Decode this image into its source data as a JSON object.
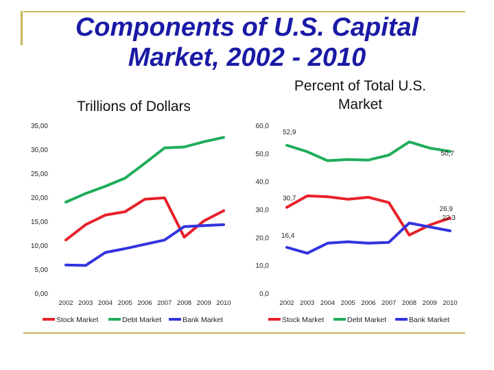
{
  "slide": {
    "title_line1": "Components of U.S. Capital",
    "title_line2": "Market, 2002 - 2010",
    "accent_color": "#c8b45a",
    "title_color": "#1a1aa6"
  },
  "chart_data": [
    {
      "type": "line",
      "title": "Trillions of Dollars",
      "x": [
        "2002",
        "2003",
        "2004",
        "2005",
        "2006",
        "2007",
        "2008",
        "2009",
        "2010"
      ],
      "yticks": [
        "0,00",
        "5,00",
        "10,00",
        "15,00",
        "20,00",
        "25,00",
        "30,00",
        "35,00"
      ],
      "ylim": [
        0,
        35
      ],
      "legend_position": "bottom",
      "series": [
        {
          "name": "Stock Market",
          "color": "#e8212a",
          "values": [
            11.1,
            14.3,
            16.3,
            17.0,
            19.6,
            19.9,
            11.7,
            15.1,
            17.2
          ]
        },
        {
          "name": "Debt Market",
          "color": "#1fad5b",
          "values": [
            19.0,
            20.8,
            22.3,
            24.0,
            27.1,
            30.3,
            30.5,
            31.6,
            32.5
          ]
        },
        {
          "name": "Bank Market",
          "color": "#3333e0",
          "values": [
            5.9,
            5.8,
            8.5,
            9.3,
            10.2,
            11.1,
            13.9,
            14.1,
            14.3
          ]
        }
      ]
    },
    {
      "type": "line",
      "title": "Percent of Total U.S. Market",
      "x": [
        "2002",
        "2003",
        "2004",
        "2005",
        "2006",
        "2007",
        "2008",
        "2009",
        "2010"
      ],
      "yticks": [
        "0,0",
        "10,0",
        "20,0",
        "30,0",
        "40,0",
        "50,0",
        "60,0"
      ],
      "ylim": [
        0,
        60
      ],
      "legend_position": "bottom",
      "series": [
        {
          "name": "Stock Market",
          "color": "#e8212a",
          "values": [
            30.7,
            34.8,
            34.5,
            33.6,
            34.3,
            32.4,
            20.8,
            24.4,
            26.9
          ]
        },
        {
          "name": "Debt Market",
          "color": "#1fad5b",
          "values": [
            52.9,
            50.6,
            47.4,
            47.8,
            47.6,
            49.4,
            54.1,
            51.9,
            50.7
          ]
        },
        {
          "name": "Bank Market",
          "color": "#3333e0",
          "values": [
            16.4,
            14.3,
            17.9,
            18.4,
            17.9,
            18.2,
            25.1,
            23.7,
            22.3
          ]
        }
      ],
      "data_labels": [
        {
          "series": 1,
          "index": 0,
          "text": "52,9"
        },
        {
          "series": 1,
          "index": 8,
          "text": "50,7"
        },
        {
          "series": 0,
          "index": 0,
          "text": "30,7"
        },
        {
          "series": 0,
          "index": 8,
          "text": "26,9"
        },
        {
          "series": 2,
          "index": 0,
          "text": "16,4"
        },
        {
          "series": 2,
          "index": 8,
          "text": "22,3"
        }
      ]
    }
  ]
}
